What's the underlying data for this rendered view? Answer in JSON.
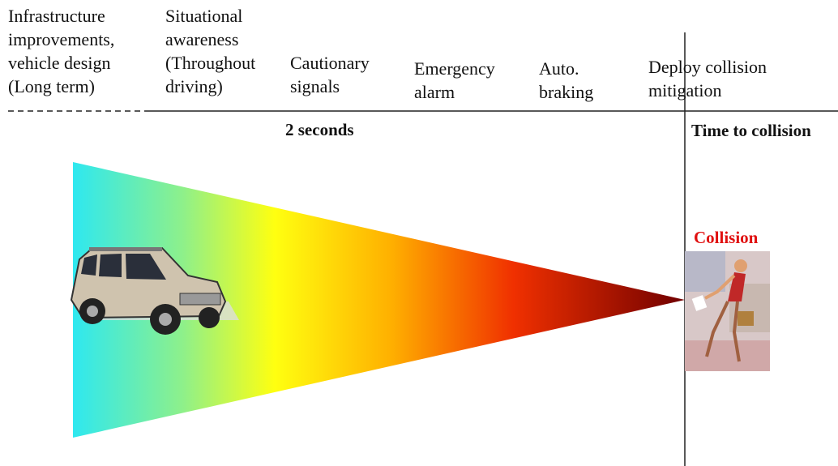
{
  "stages": [
    {
      "lines": [
        "Infrastructure",
        "improvements,",
        "vehicle design",
        "(Long term)"
      ]
    },
    {
      "lines": [
        "Situational",
        "awareness",
        "(Throughout",
        "driving)"
      ]
    },
    {
      "lines": [
        "Cautionary",
        "signals"
      ]
    },
    {
      "lines": [
        "Emergency",
        "alarm"
      ]
    },
    {
      "lines": [
        "Auto.",
        "braking"
      ]
    },
    {
      "lines": [
        "Deploy collision",
        "mitigation"
      ]
    }
  ],
  "interval_label": "2 seconds",
  "axis_label": "Time to collision",
  "event_label": "Collision"
}
